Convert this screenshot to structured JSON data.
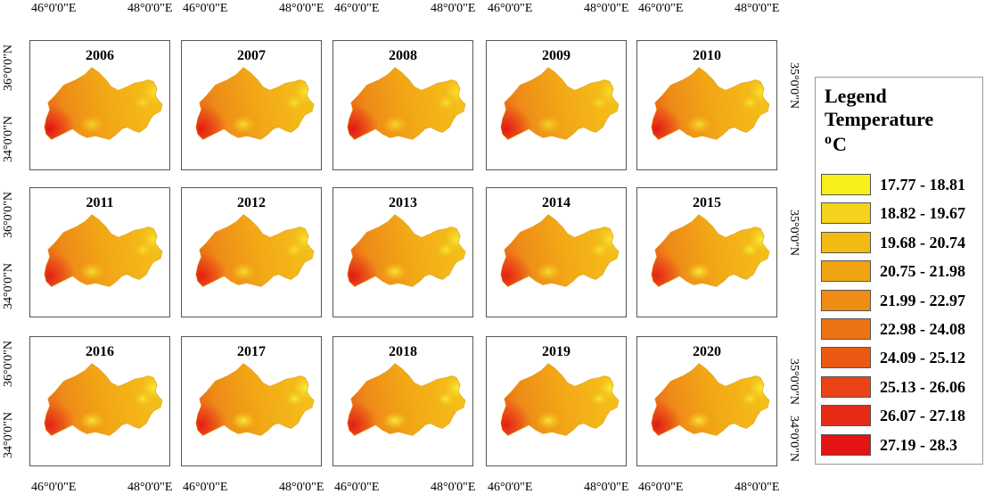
{
  "axes": {
    "x_left_label": "46°0'0\"E",
    "x_right_label": "48°0'0\"E",
    "y_top_label": "36°0'0\"N",
    "y_mid_label": "35°0'0\"N",
    "y_bottom_label": "34°0'0\"N"
  },
  "panels": [
    {
      "year": "2006",
      "hot": 1.0,
      "cool": 0.2
    },
    {
      "year": "2007",
      "hot": 0.9,
      "cool": 0.3
    },
    {
      "year": "2008",
      "hot": 0.95,
      "cool": 0.25
    },
    {
      "year": "2009",
      "hot": 0.95,
      "cool": 0.2
    },
    {
      "year": "2010",
      "hot": 0.9,
      "cool": 0.3
    },
    {
      "year": "2011",
      "hot": 0.85,
      "cool": 0.3
    },
    {
      "year": "2012",
      "hot": 0.85,
      "cool": 0.3
    },
    {
      "year": "2013",
      "hot": 0.9,
      "cool": 0.4
    },
    {
      "year": "2014",
      "hot": 0.85,
      "cool": 0.3
    },
    {
      "year": "2015",
      "hot": 0.8,
      "cool": 0.5
    },
    {
      "year": "2016",
      "hot": 0.8,
      "cool": 0.4
    },
    {
      "year": "2017",
      "hot": 0.85,
      "cool": 0.5
    },
    {
      "year": "2018",
      "hot": 0.85,
      "cool": 0.5
    },
    {
      "year": "2019",
      "hot": 0.85,
      "cool": 0.4
    },
    {
      "year": "2020",
      "hot": 0.9,
      "cool": 0.4
    }
  ],
  "legend": {
    "title_line1": "Legend",
    "title_line2": "Temperature",
    "unit_sup": "o",
    "unit": "C",
    "classes": [
      {
        "label": "17.77 - 18.81",
        "color": "#f8ef1a"
      },
      {
        "label": "18.82 - 19.67",
        "color": "#f5d21c"
      },
      {
        "label": "19.68 - 20.74",
        "color": "#f2bb13"
      },
      {
        "label": "20.75 - 21.98",
        "color": "#f0a413"
      },
      {
        "label": "21.99 - 22.97",
        "color": "#ee8c14"
      },
      {
        "label": "22.98 - 24.08",
        "color": "#ec7314"
      },
      {
        "label": "24.09 - 25.12",
        "color": "#ea5a14"
      },
      {
        "label": "25.13 - 26.06",
        "color": "#e84417"
      },
      {
        "label": "26.07 - 27.18",
        "color": "#e62b17"
      },
      {
        "label": "27.19 - 28.3",
        "color": "#e41414"
      }
    ]
  }
}
